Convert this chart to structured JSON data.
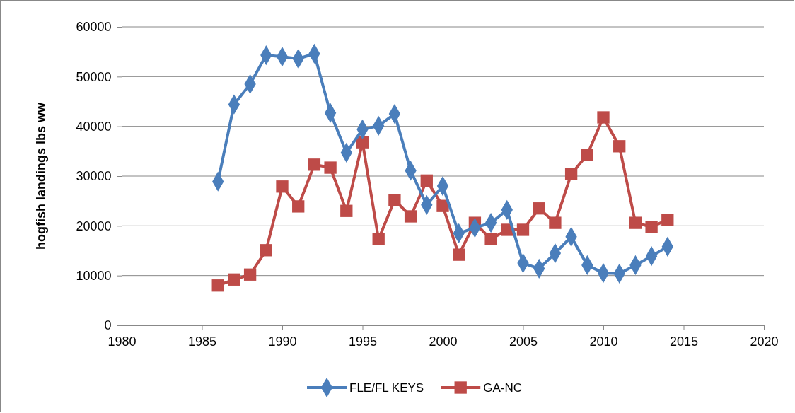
{
  "chart_data": {
    "type": "line",
    "ylabel": "hogfish landings lbs ww",
    "x": [
      1986,
      1987,
      1988,
      1989,
      1990,
      1991,
      1992,
      1993,
      1994,
      1995,
      1996,
      1997,
      1998,
      1999,
      2000,
      2001,
      2002,
      2003,
      2004,
      2005,
      2006,
      2007,
      2008,
      2009,
      2010,
      2011,
      2012,
      2013,
      2014
    ],
    "series": [
      {
        "name": "FLE/FL KEYS",
        "color": "#4a7ebb",
        "marker": "diamond",
        "values": [
          28900,
          44400,
          48500,
          54300,
          54000,
          53600,
          54600,
          42700,
          34700,
          39400,
          40100,
          42500,
          31100,
          24200,
          28000,
          18500,
          19600,
          20600,
          23200,
          12500,
          11400,
          14500,
          17800,
          12100,
          10500,
          10400,
          12100,
          13900,
          15800
        ]
      },
      {
        "name": "GA-NC",
        "color": "#be4b48",
        "marker": "square",
        "values": [
          8000,
          9200,
          10200,
          15100,
          27900,
          23900,
          32300,
          31700,
          23000,
          36800,
          17300,
          25200,
          21900,
          29100,
          24000,
          14200,
          20600,
          17300,
          19200,
          19200,
          23500,
          20600,
          30400,
          34300,
          41800,
          36000,
          20600,
          19800,
          21200
        ]
      }
    ],
    "xlim": [
      1980,
      2020
    ],
    "xticks": [
      1980,
      1985,
      1990,
      1995,
      2000,
      2005,
      2010,
      2015,
      2020
    ],
    "ylim": [
      0,
      60000
    ],
    "yticks": [
      0,
      10000,
      20000,
      30000,
      40000,
      50000,
      60000
    ],
    "grid": "y",
    "legend": "bottom",
    "line_style": "solid"
  }
}
